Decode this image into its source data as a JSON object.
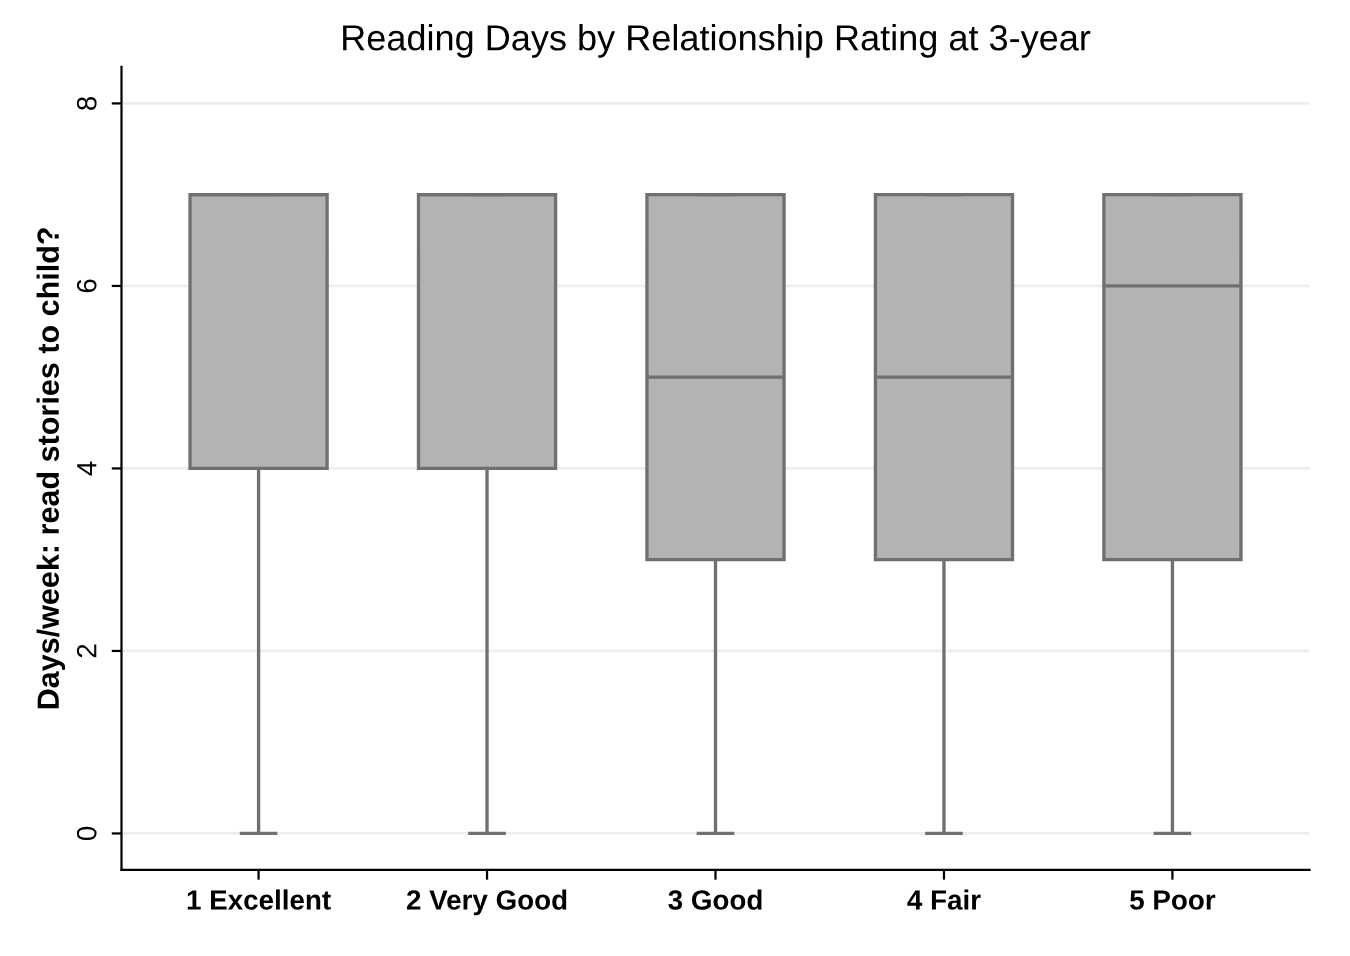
{
  "chart_data": {
    "type": "box",
    "title": "Reading Days by Relationship Rating at 3-year",
    "ylabel": "Days/week: read stories to child?",
    "categories": [
      "1 Excellent",
      "2 Very Good",
      "3 Good",
      "4 Fair",
      "5 Poor"
    ],
    "boxes": [
      {
        "low": 0,
        "q1": 4,
        "median": 7,
        "q3": 7,
        "high": 7
      },
      {
        "low": 0,
        "q1": 4,
        "median": 7,
        "q3": 7,
        "high": 7
      },
      {
        "low": 0,
        "q1": 3,
        "median": 5,
        "q3": 7,
        "high": 7
      },
      {
        "low": 0,
        "q1": 3,
        "median": 5,
        "q3": 7,
        "high": 7
      },
      {
        "low": 0,
        "q1": 3,
        "median": 6,
        "q3": 7,
        "high": 7
      }
    ],
    "color": "#b3b3b3",
    "ylim": [
      -0.4,
      8.4
    ],
    "yticks": [
      0,
      2,
      4,
      6,
      8
    ],
    "grid": "y"
  }
}
